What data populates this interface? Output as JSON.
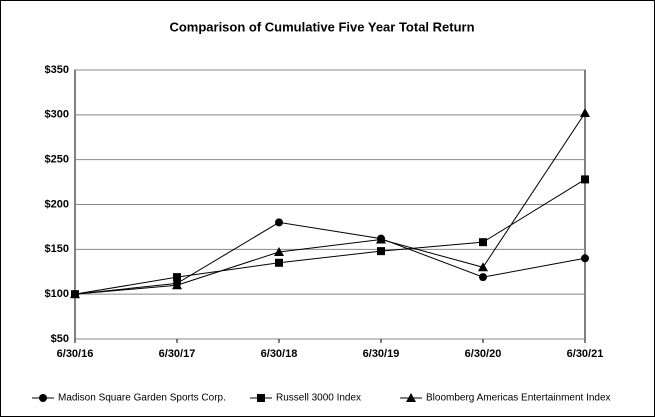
{
  "chart_data": {
    "type": "line",
    "title": "Comparison of Cumulative Five Year Total Return",
    "categories": [
      "6/30/16",
      "6/30/17",
      "6/30/18",
      "6/30/19",
      "6/30/20",
      "6/30/21"
    ],
    "series": [
      {
        "name": "Madison Square Garden Sports Corp.",
        "color": "#000000",
        "marker": "circle",
        "values": [
          100,
          112,
          180,
          162,
          119,
          140
        ]
      },
      {
        "name": "Russell 3000 Index",
        "color": "#000000",
        "marker": "square",
        "values": [
          100,
          119,
          135,
          148,
          158,
          228
        ]
      },
      {
        "name": "Bloomberg Americas Entertainment Index",
        "color": "#000000",
        "marker": "triangle",
        "values": [
          100,
          110,
          147,
          161,
          130,
          302
        ]
      }
    ],
    "ylim": [
      50,
      350
    ],
    "yticks": [
      {
        "value": 50,
        "label": "$50"
      },
      {
        "value": 100,
        "label": "$100"
      },
      {
        "value": 150,
        "label": "$150"
      },
      {
        "value": 200,
        "label": "$200"
      },
      {
        "value": 250,
        "label": "$250"
      },
      {
        "value": 300,
        "label": "$300"
      },
      {
        "value": 350,
        "label": "$350"
      }
    ],
    "grid": true
  }
}
